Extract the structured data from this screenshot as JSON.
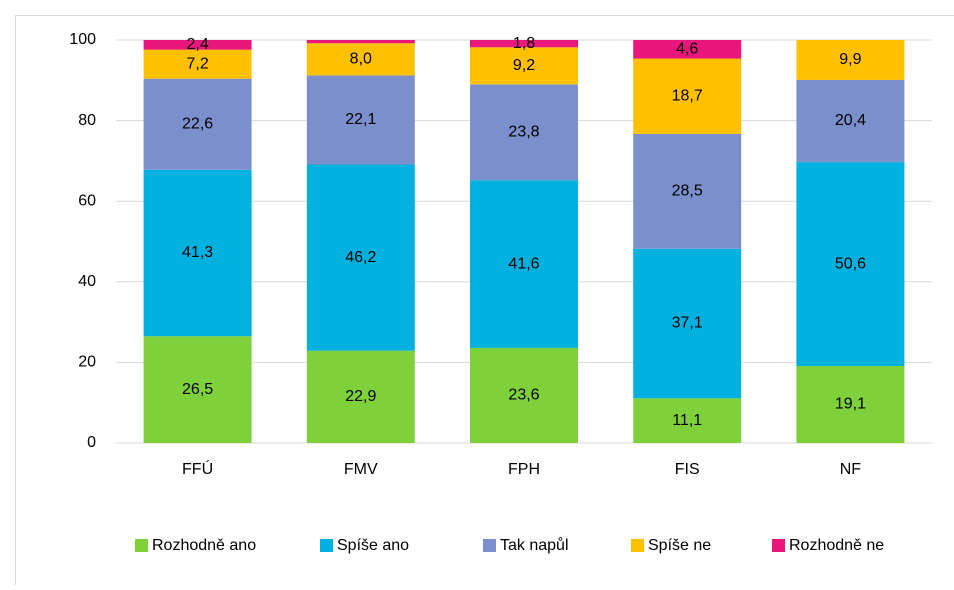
{
  "chart_data": {
    "type": "stacked_bar",
    "categories": [
      "FFÚ",
      "FMV",
      "FPH",
      "FIS",
      "NF"
    ],
    "series": [
      {
        "name": "Rozhodně ano",
        "color": "#7fd13b",
        "values": [
          26.5,
          22.9,
          23.6,
          11.1,
          19.1
        ],
        "value_labels": [
          "26,5",
          "22,9",
          "23,6",
          "11,1",
          "19,1"
        ]
      },
      {
        "name": "Spíše ano",
        "color": "#00b0df",
        "values": [
          41.3,
          46.2,
          41.6,
          37.1,
          50.6
        ],
        "value_labels": [
          "41,3",
          "46,2",
          "41,6",
          "37,1",
          "50,6"
        ]
      },
      {
        "name": "Tak napůl",
        "color": "#7b8fcc",
        "values": [
          22.6,
          22.1,
          23.8,
          28.5,
          20.4
        ],
        "value_labels": [
          "22,6",
          "22,1",
          "23,8",
          "28,5",
          "20,4"
        ]
      },
      {
        "name": "Spíše ne",
        "color": "#ffc000",
        "values": [
          7.2,
          8.0,
          9.2,
          18.7,
          9.9
        ],
        "value_labels": [
          "7,2",
          "8,0",
          "9,2",
          "18,7",
          "9,9"
        ]
      },
      {
        "name": "Rozhodně ne",
        "color": "#e9177b",
        "values": [
          2.4,
          0.8,
          1.8,
          4.6,
          null
        ],
        "value_labels": [
          "2,4",
          null,
          "1,8",
          "4,6",
          null
        ]
      }
    ],
    "ylim": [
      0,
      100
    ],
    "yticks": [
      0,
      20,
      40,
      60,
      80,
      100
    ],
    "grid": true,
    "legend": "bottom"
  }
}
